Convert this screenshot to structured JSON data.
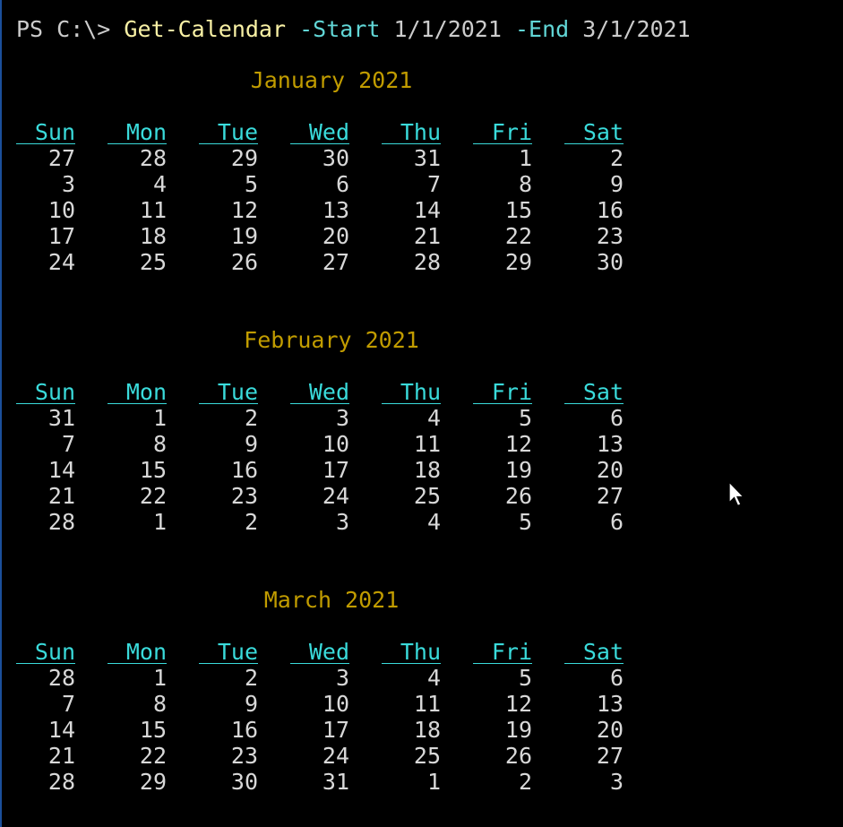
{
  "prompt": {
    "ps_label": "PS C:\\>",
    "command": "Get-Calendar",
    "param_start": "-Start",
    "start_value": "1/1/2021",
    "param_end": "-End",
    "end_value": "3/1/2021"
  },
  "day_headers": [
    "Sun",
    "Mon",
    "Tue",
    "Wed",
    "Thu",
    "Fri",
    "Sat"
  ],
  "months": [
    {
      "title": "January 2021",
      "weeks": [
        [
          "27",
          "28",
          "29",
          "30",
          "31",
          "1",
          "2"
        ],
        [
          "3",
          "4",
          "5",
          "6",
          "7",
          "8",
          "9"
        ],
        [
          "10",
          "11",
          "12",
          "13",
          "14",
          "15",
          "16"
        ],
        [
          "17",
          "18",
          "19",
          "20",
          "21",
          "22",
          "23"
        ],
        [
          "24",
          "25",
          "26",
          "27",
          "28",
          "29",
          "30"
        ]
      ]
    },
    {
      "title": "February 2021",
      "weeks": [
        [
          "31",
          "1",
          "2",
          "3",
          "4",
          "5",
          "6"
        ],
        [
          "7",
          "8",
          "9",
          "10",
          "11",
          "12",
          "13"
        ],
        [
          "14",
          "15",
          "16",
          "17",
          "18",
          "19",
          "20"
        ],
        [
          "21",
          "22",
          "23",
          "24",
          "25",
          "26",
          "27"
        ],
        [
          "28",
          "1",
          "2",
          "3",
          "4",
          "5",
          "6"
        ]
      ]
    },
    {
      "title": "March 2021",
      "weeks": [
        [
          "28",
          "1",
          "2",
          "3",
          "4",
          "5",
          "6"
        ],
        [
          "7",
          "8",
          "9",
          "10",
          "11",
          "12",
          "13"
        ],
        [
          "14",
          "15",
          "16",
          "17",
          "18",
          "19",
          "20"
        ],
        [
          "21",
          "22",
          "23",
          "24",
          "25",
          "26",
          "27"
        ],
        [
          "28",
          "29",
          "30",
          "31",
          "1",
          "2",
          "3"
        ]
      ]
    }
  ],
  "colors": {
    "background": "#000000",
    "prompt_text": "#cccccc",
    "command": "#f9f1a5",
    "parameter": "#61d6d6",
    "month_title": "#c19c00",
    "day_header": "#3adbdb",
    "day_number": "#d8d8d8"
  },
  "icons": {
    "mouse_cursor": "mouse-pointer-icon"
  }
}
